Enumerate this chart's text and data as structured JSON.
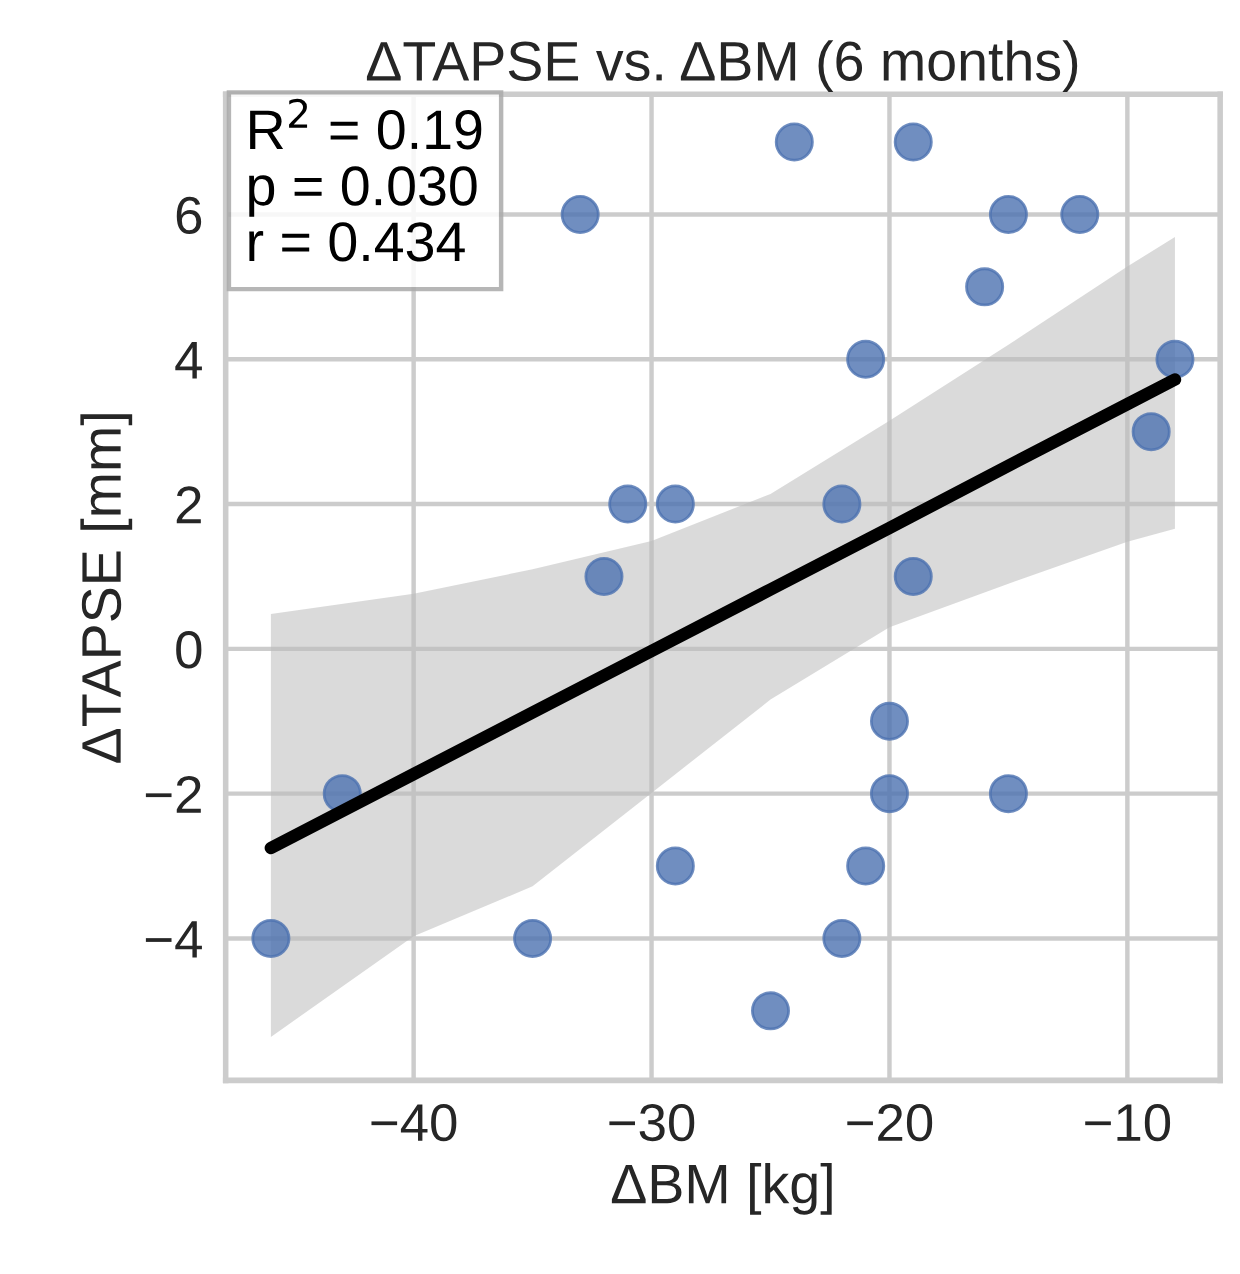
{
  "chart_data": {
    "type": "scatter",
    "title": "ΔTAPSE vs. ΔBM (6 months)",
    "xlabel": "ΔBM [kg]",
    "ylabel": "ΔTAPSE [mm]",
    "annotations": [
      "R$^{2}$ = 0.19",
      "p = 0.030",
      "r = 0.434"
    ],
    "series": [
      {
        "color": "#4c72b0",
        "marker": "circle",
        "x": [
          -24,
          -19,
          -33,
          -15,
          -12,
          -16,
          -21,
          -8,
          -9,
          -31,
          -29,
          -22,
          -32,
          -19,
          -20,
          -43,
          -20,
          -15,
          -29,
          -21,
          -46,
          -35,
          -22,
          -25
        ],
        "values": [
          7,
          7,
          6,
          6,
          6,
          5,
          4,
          4,
          3,
          2,
          2,
          2,
          1,
          1,
          -1,
          -2,
          -2,
          -2,
          -3,
          -3,
          -4,
          -4,
          -4,
          -5
        ]
      },
      {
        "type": "line",
        "marker": "none",
        "color": "#000000",
        "x": [
          -46,
          -40,
          -35,
          -30,
          -25,
          -20,
          -15,
          -10,
          -8
        ],
        "values": [
          -2.75,
          -1.73,
          -0.88,
          -0.03,
          0.82,
          1.67,
          2.53,
          3.38,
          3.72
        ],
        "lower": [
          -5.36,
          -3.97,
          -3.28,
          -1.99,
          -0.7,
          0.3,
          0.9,
          1.48,
          1.66
        ],
        "upper": [
          0.48,
          0.76,
          1.1,
          1.49,
          2.14,
          3.15,
          4.2,
          5.28,
          5.69
        ]
      }
    ],
    "xlim": [
      -47.9,
      -6.1
    ],
    "ylim": [
      -5.96,
      7.66
    ],
    "xticks": [
      {
        "value": -40,
        "label": "−40"
      },
      {
        "value": -30,
        "label": "−30"
      },
      {
        "value": -20,
        "label": "−20"
      },
      {
        "value": -10,
        "label": "−10"
      }
    ],
    "yticks": [
      {
        "value": -4,
        "label": "−4"
      },
      {
        "value": -2,
        "label": "−2"
      },
      0,
      2,
      4,
      6
    ],
    "grid": true,
    "line_style": "solid"
  }
}
